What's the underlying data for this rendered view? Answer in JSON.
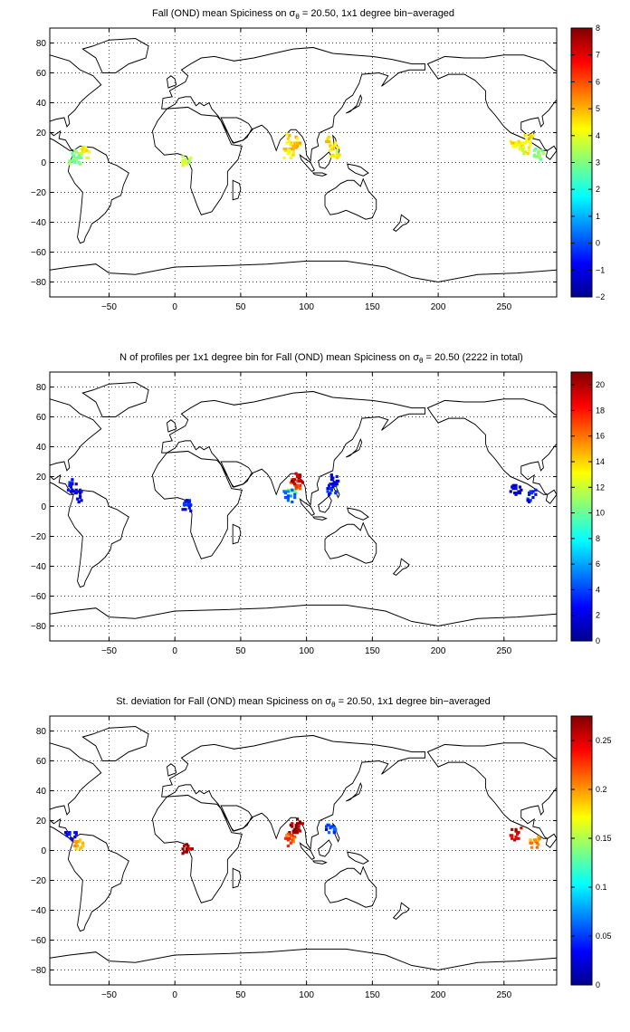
{
  "panels": [
    {
      "title_pre": "Fall (OND) mean Spiciness on ",
      "title_sigma": "σ",
      "title_sub": "θ",
      "title_post": " = 20.50, 1x1 degree bin−averaged",
      "colorbar": {
        "ticks": [
          "8",
          "7",
          "6",
          "5",
          "4",
          "3",
          "2",
          "1",
          "0",
          "−1",
          "−2"
        ],
        "min": -2,
        "max": 8
      },
      "blobs": [
        {
          "lon": -70,
          "lat": 8,
          "value": 4.3
        },
        {
          "lon": -75,
          "lat": 5,
          "value": 3.2
        },
        {
          "lon": -77,
          "lat": 3,
          "value": 2.9
        },
        {
          "lon": 8,
          "lat": 2,
          "value": 3.6
        },
        {
          "lon": 88,
          "lat": 16,
          "value": 4.6
        },
        {
          "lon": 90,
          "lat": 12,
          "value": 4.9
        },
        {
          "lon": 86,
          "lat": 8,
          "value": 4.4
        },
        {
          "lon": 118,
          "lat": 14,
          "value": 4.5
        },
        {
          "lon": 120,
          "lat": 8,
          "value": 4.2
        },
        {
          "lon": 258,
          "lat": 12,
          "value": 4.4
        },
        {
          "lon": 265,
          "lat": 10,
          "value": 4.1
        },
        {
          "lon": 275,
          "lat": 6,
          "value": 3.0
        },
        {
          "lon": 268,
          "lat": 16,
          "value": 4.5
        }
      ]
    },
    {
      "title_pre": "N of profiles per 1x1 degree bin for Fall (OND) mean Spiciness on ",
      "title_sigma": "σ",
      "title_sub": "θ",
      "title_post": " = 20.50 (2222 in total)",
      "colorbar": {
        "ticks": [
          "20",
          "18",
          "16",
          "14",
          "12",
          "10",
          "8",
          "6",
          "4",
          "2",
          "0"
        ],
        "min": 0,
        "max": 21
      },
      "blobs": [
        {
          "lon": -75,
          "lat": 8,
          "value": 2
        },
        {
          "lon": -80,
          "lat": 15,
          "value": 3
        },
        {
          "lon": 8,
          "lat": 2,
          "value": 3
        },
        {
          "lon": 88,
          "lat": 14,
          "value": 10
        },
        {
          "lon": 90,
          "lat": 16,
          "value": 17
        },
        {
          "lon": 86,
          "lat": 8,
          "value": 5
        },
        {
          "lon": 92,
          "lat": 20,
          "value": 20
        },
        {
          "lon": 118,
          "lat": 12,
          "value": 3
        },
        {
          "lon": 120,
          "lat": 18,
          "value": 2
        },
        {
          "lon": 258,
          "lat": 12,
          "value": 2
        },
        {
          "lon": 270,
          "lat": 8,
          "value": 3
        }
      ]
    },
    {
      "title_pre": "St. deviation for Fall (OND) mean Spiciness on ",
      "title_sigma": "σ",
      "title_sub": "θ",
      "title_post": " = 20.50, 1x1 degree bin−averaged",
      "colorbar": {
        "ticks": [
          "0.25",
          "0.2",
          "0.15",
          "0.1",
          "0.05",
          "0"
        ],
        "min": 0,
        "max": 0.275
      },
      "blobs": [
        {
          "lon": -80,
          "lat": 10,
          "value": 0.03
        },
        {
          "lon": -74,
          "lat": 5,
          "value": 0.2
        },
        {
          "lon": 8,
          "lat": 2,
          "value": 0.26
        },
        {
          "lon": 88,
          "lat": 14,
          "value": 0.27
        },
        {
          "lon": 86,
          "lat": 8,
          "value": 0.22
        },
        {
          "lon": 92,
          "lat": 18,
          "value": 0.27
        },
        {
          "lon": 118,
          "lat": 14,
          "value": 0.05
        },
        {
          "lon": 258,
          "lat": 12,
          "value": 0.25
        },
        {
          "lon": 272,
          "lat": 6,
          "value": 0.2
        }
      ]
    }
  ],
  "axes": {
    "xticks": [
      -50,
      0,
      50,
      100,
      150,
      200,
      250
    ],
    "xtick_labels": [
      "−50",
      "0",
      "50",
      "100",
      "150",
      "200",
      "250"
    ],
    "yticks": [
      80,
      60,
      40,
      20,
      0,
      -20,
      -40,
      -60,
      -80
    ],
    "ytick_labels": [
      "80",
      "60",
      "40",
      "20",
      "0",
      "−20",
      "−40",
      "−60",
      "−80"
    ],
    "xlim": [
      -95,
      290
    ],
    "ylim": [
      -90,
      90
    ]
  }
}
